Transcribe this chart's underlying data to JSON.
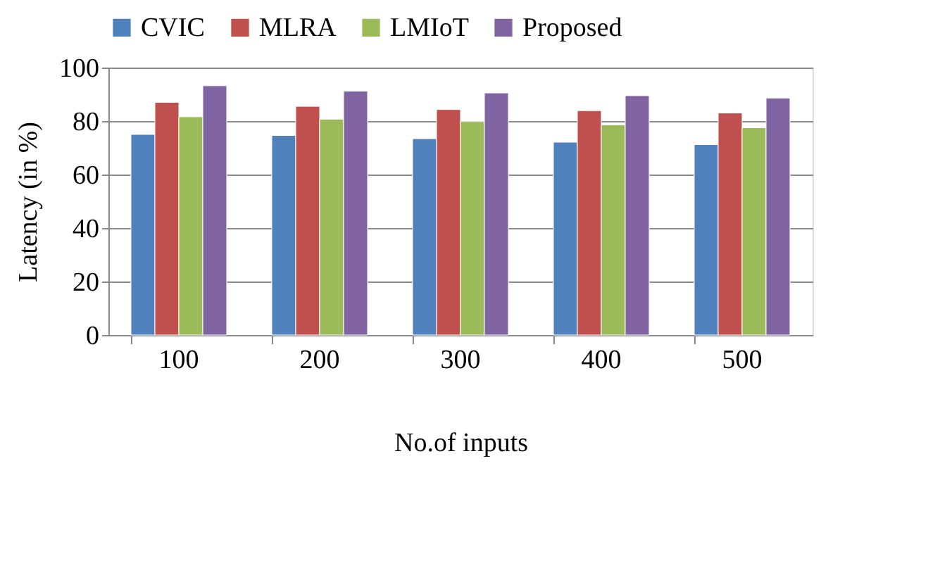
{
  "chart_data": {
    "type": "bar",
    "xlabel": "No.of inputs",
    "ylabel": "Latency (in %)",
    "categories": [
      "100",
      "200",
      "300",
      "400",
      "500"
    ],
    "series": [
      {
        "name": "CVIC",
        "color": "#4f81bd",
        "values": [
          75,
          74.6,
          73.4,
          72.1,
          71.2
        ]
      },
      {
        "name": "MLRA",
        "color": "#c0504d",
        "values": [
          87,
          85.5,
          84.3,
          83.9,
          83
        ]
      },
      {
        "name": "LMIoT",
        "color": "#9bbb59",
        "values": [
          81.6,
          80.7,
          79.8,
          78.6,
          77.5
        ]
      },
      {
        "name": "Proposed",
        "color": "#8064a2",
        "values": [
          93.2,
          91.2,
          90.5,
          89.5,
          88.6
        ]
      }
    ],
    "ylim": [
      0,
      100
    ],
    "yticks": [
      0,
      20,
      40,
      60,
      80,
      100
    ],
    "grid": "y",
    "legend": "top"
  }
}
